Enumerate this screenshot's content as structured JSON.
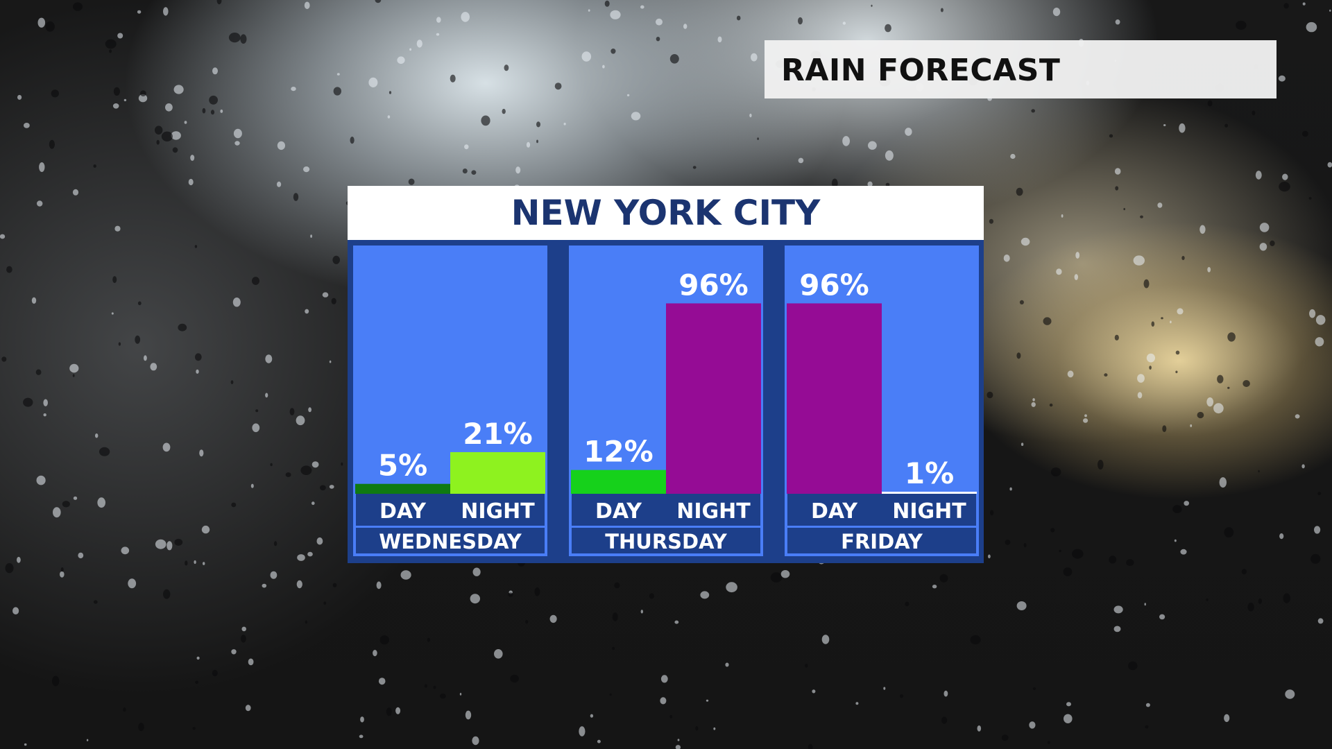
{
  "header": {
    "label": "RAIN FORECAST"
  },
  "panel": {
    "title": "NEW YORK CITY"
  },
  "chart_data": {
    "type": "bar",
    "title": "NEW YORK CITY",
    "ylim": [
      0,
      100
    ],
    "unit": "%",
    "groups": [
      {
        "day": "WEDNESDAY",
        "bars": [
          {
            "label": "DAY",
            "value": 5,
            "display": "5%",
            "color": "#0f7a12"
          },
          {
            "label": "NIGHT",
            "value": 21,
            "display": "21%",
            "color": "#8ef21f"
          }
        ]
      },
      {
        "day": "THURSDAY",
        "bars": [
          {
            "label": "DAY",
            "value": 12,
            "display": "12%",
            "color": "#16d11b"
          },
          {
            "label": "NIGHT",
            "value": 96,
            "display": "96%",
            "color": "#950c95"
          }
        ]
      },
      {
        "day": "FRIDAY",
        "bars": [
          {
            "label": "DAY",
            "value": 96,
            "display": "96%",
            "color": "#950c95"
          },
          {
            "label": "NIGHT",
            "value": 1,
            "display": "1%",
            "color": "#ffffff"
          }
        ]
      }
    ],
    "colors": {
      "panel_bg": "#4a7ef7",
      "label_bg": "#1d3f8a",
      "frame": "#1d3f8a",
      "text": "#ffffff"
    }
  }
}
